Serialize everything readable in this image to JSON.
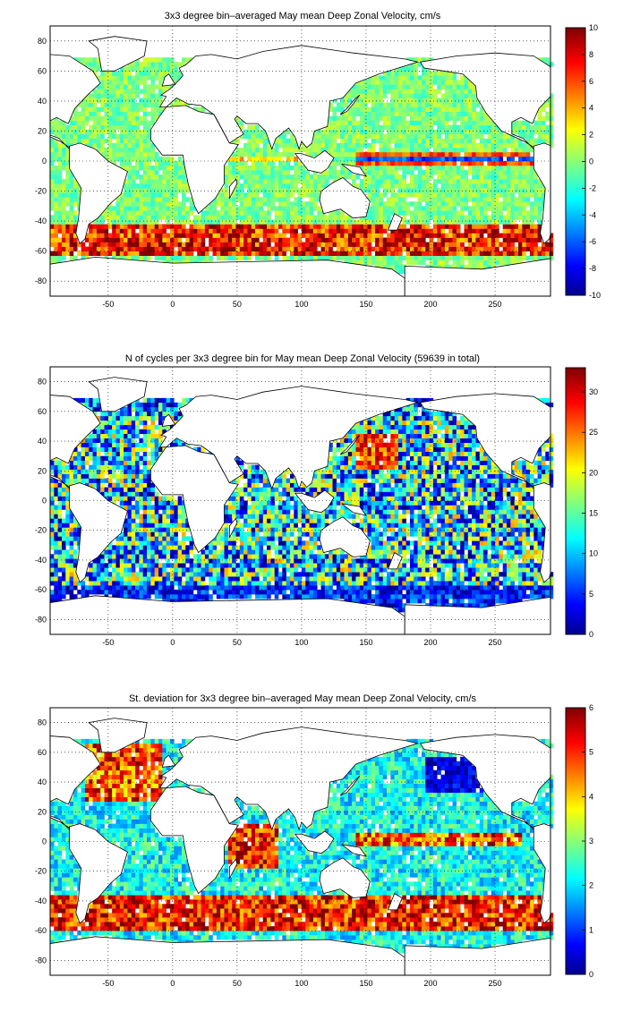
{
  "chart_data": [
    {
      "type": "heatmap",
      "title": "3x3 degree bin–averaged May mean Deep Zonal Velocity, cm/s",
      "xlabel": "",
      "ylabel": "",
      "xlim": [
        -95,
        293
      ],
      "ylim": [
        -90,
        90
      ],
      "xticks": [
        "-50",
        "0",
        "50",
        "100",
        "150",
        "200",
        "250"
      ],
      "yticks": [
        "80",
        "60",
        "40",
        "20",
        "0",
        "-20",
        "-40",
        "-60",
        "-80"
      ],
      "grid": "dotted",
      "colorbar": {
        "min": -10,
        "max": 10,
        "ticks": [
          "10",
          "8",
          "6",
          "4",
          "2",
          "0",
          "-2",
          "-4",
          "-6",
          "-8",
          "-10"
        ],
        "colormap": "jet"
      },
      "field": "mean zonal velocity, 3x3 degree bins",
      "features": [
        "eastward jet along Antarctic Circumpolar Current near -55 to -60 latitude (+6 to +10 cm/s)",
        "alternating equatorial jets in Pacific near 0 latitude",
        "mostly near-zero (-2 to +2) elsewhere"
      ]
    },
    {
      "type": "heatmap",
      "title": "N of cycles per 3x3 degree bin for May mean Deep Zonal Velocity (59639 in total)",
      "xlabel": "",
      "ylabel": "",
      "xlim": [
        -95,
        293
      ],
      "ylim": [
        -90,
        90
      ],
      "xticks": [
        "-50",
        "0",
        "50",
        "100",
        "150",
        "200",
        "250"
      ],
      "yticks": [
        "80",
        "60",
        "40",
        "20",
        "0",
        "-20",
        "-40",
        "-60",
        "-80"
      ],
      "grid": "dotted",
      "colorbar": {
        "min": 0,
        "max": 33,
        "ticks": [
          "30",
          "25",
          "20",
          "15",
          "10",
          "5",
          "0"
        ],
        "colormap": "jet"
      },
      "field": "number of float cycles per bin",
      "features": [
        "high counts (25-33) in NW Pacific near 150 longitude, 30 latitude",
        "low counts (0-5) along coasts and in Southern Ocean near -65 latitude"
      ]
    },
    {
      "type": "heatmap",
      "title": "St. deviation for 3x3 degree bin–averaged May mean Deep Zonal Velocity, cm/s",
      "xlabel": "",
      "ylabel": "",
      "xlim": [
        -95,
        293
      ],
      "ylim": [
        -90,
        90
      ],
      "xticks": [
        "-50",
        "0",
        "50",
        "100",
        "150",
        "200",
        "250"
      ],
      "yticks": [
        "80",
        "60",
        "40",
        "20",
        "0",
        "-20",
        "-40",
        "-60",
        "-80"
      ],
      "grid": "dotted",
      "colorbar": {
        "min": 0,
        "max": 6,
        "ticks": [
          "6",
          "5",
          "4",
          "3",
          "2",
          "1",
          "0"
        ],
        "colormap": "jet"
      },
      "field": "standard deviation of zonal velocity",
      "features": [
        "high (5-6) in Southern Ocean, Agulhas, Gulf Stream, western Indian Ocean",
        "high band along equatorial Pacific",
        "low (0-1) in central North Pacific near 220 longitude, 40 latitude"
      ]
    }
  ]
}
